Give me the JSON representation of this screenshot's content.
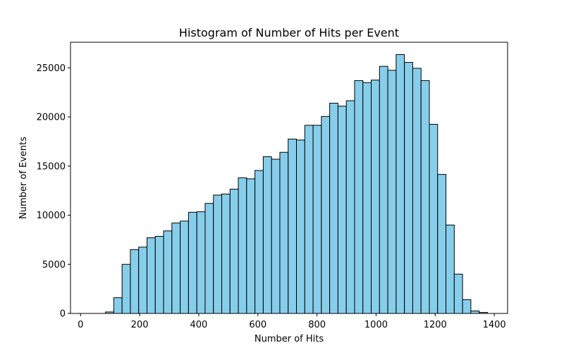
{
  "chart_data": {
    "type": "bar",
    "title": "Histogram of Number of Hits per Event",
    "xlabel": "Number of Hits",
    "ylabel": "Number of Events",
    "bin_width": 28.1,
    "bin_starts": [
      0,
      28.1,
      56.2,
      84.3,
      112.4,
      140.5,
      168.6,
      196.7,
      224.8,
      252.9,
      281,
      309.1,
      337.2,
      365.3,
      393.4,
      421.5,
      449.6,
      477.7,
      505.8,
      533.9,
      562,
      590.1,
      618.2,
      646.3,
      674.4,
      702.5,
      730.6,
      758.7,
      786.8,
      814.9,
      843,
      871.1,
      899.2,
      927.3,
      955.4,
      983.5,
      1011.6,
      1039.7,
      1067.8,
      1095.9,
      1124,
      1152.1,
      1180.2,
      1208.3,
      1236.4,
      1264.5,
      1292.6,
      1320.7,
      1348.8,
      1376.9
    ],
    "values": [
      0,
      0,
      0,
      150,
      1600,
      5000,
      6500,
      6750,
      7700,
      7850,
      8400,
      9200,
      9400,
      10300,
      10350,
      11200,
      12050,
      12150,
      12650,
      13800,
      13700,
      14550,
      15950,
      15700,
      16400,
      17750,
      17650,
      19150,
      19150,
      20050,
      21400,
      21100,
      21650,
      23700,
      23500,
      23750,
      25150,
      24750,
      26350,
      25550,
      24950,
      23700,
      19250,
      14150,
      9000,
      4000,
      1400,
      250,
      100,
      0
    ],
    "xlim": [
      -34,
      1445
    ],
    "ylim": [
      0,
      27600
    ],
    "xticks": [
      0,
      200,
      400,
      600,
      800,
      1000,
      1200,
      1400
    ],
    "yticks": [
      0,
      5000,
      10000,
      15000,
      20000,
      25000
    ],
    "bar_color": "#87ceeb",
    "edge_color": "#000000",
    "grid": false,
    "legend": "none"
  }
}
